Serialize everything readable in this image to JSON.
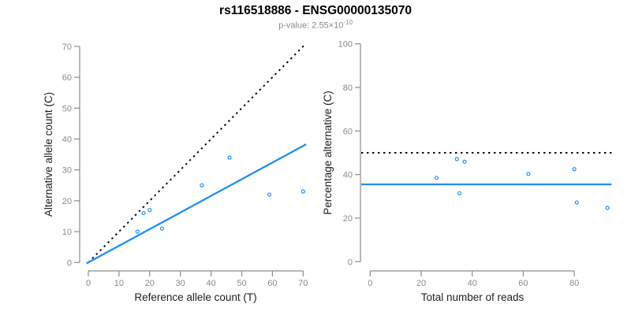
{
  "header": {
    "title": "rs116518886 - ENSG00000135070",
    "subtitle_prefix": "p-value: 2.55×10",
    "subtitle_exponent": "-10"
  },
  "colors": {
    "accent_blue": "#1E8FF5",
    "dotted_black": "#000000",
    "tick": "#8c8c8c",
    "tick_label": "#8c8c8c",
    "axis_label": "#1f1f1f",
    "background": "#ffffff"
  },
  "chart_data": [
    {
      "id": "allele-count-scatter",
      "type": "scatter",
      "xlabel": "Reference allele count (T)",
      "ylabel": "Alternative allele count (C)",
      "xlim": [
        0,
        70
      ],
      "ylim": [
        0,
        70
      ],
      "xticks": [
        0,
        10,
        20,
        30,
        40,
        50,
        60,
        70
      ],
      "yticks": [
        0,
        10,
        20,
        30,
        40,
        50,
        60,
        70
      ],
      "grid": false,
      "legend": null,
      "points": [
        [
          16,
          10
        ],
        [
          18,
          16
        ],
        [
          20,
          17
        ],
        [
          24,
          11
        ],
        [
          37,
          25
        ],
        [
          46,
          34
        ],
        [
          59,
          22
        ],
        [
          70,
          23
        ]
      ],
      "lines": [
        {
          "name": "expected-identity-line",
          "style": "dotted",
          "color": "#000000",
          "points": [
            [
              0,
              0
            ],
            [
              70.3,
              70.3
            ]
          ]
        },
        {
          "name": "fitted-ratio-line",
          "style": "solid",
          "color": "#1E8FF5",
          "points": [
            [
              -0.6,
              -0.3
            ],
            [
              71,
              38.3
            ]
          ]
        }
      ]
    },
    {
      "id": "percentage-alternative-scatter",
      "type": "scatter",
      "xlabel": "Total number of reads",
      "ylabel": "Percentage alternative (C)",
      "xlim": [
        0,
        80
      ],
      "ylim": [
        0,
        100
      ],
      "xticks": [
        0,
        20,
        40,
        60,
        80
      ],
      "yticks": [
        0,
        20,
        40,
        60,
        80,
        100
      ],
      "grid": false,
      "legend": null,
      "points": [
        [
          26,
          38.5
        ],
        [
          34,
          47.1
        ],
        [
          35,
          31.4
        ],
        [
          37,
          45.9
        ],
        [
          62,
          40.3
        ],
        [
          80,
          42.5
        ],
        [
          81,
          27.2
        ],
        [
          93,
          24.7
        ]
      ],
      "lines": [
        {
          "name": "expected-50-percent-line",
          "style": "dotted",
          "color": "#000000",
          "points": [
            [
              -3.5,
              50
            ],
            [
              94.6,
              50
            ]
          ]
        },
        {
          "name": "mean-percentage-line",
          "style": "solid",
          "color": "#1E8FF5",
          "points": [
            [
              -3.5,
              35.5
            ],
            [
              94.6,
              35.5
            ]
          ]
        }
      ]
    }
  ]
}
